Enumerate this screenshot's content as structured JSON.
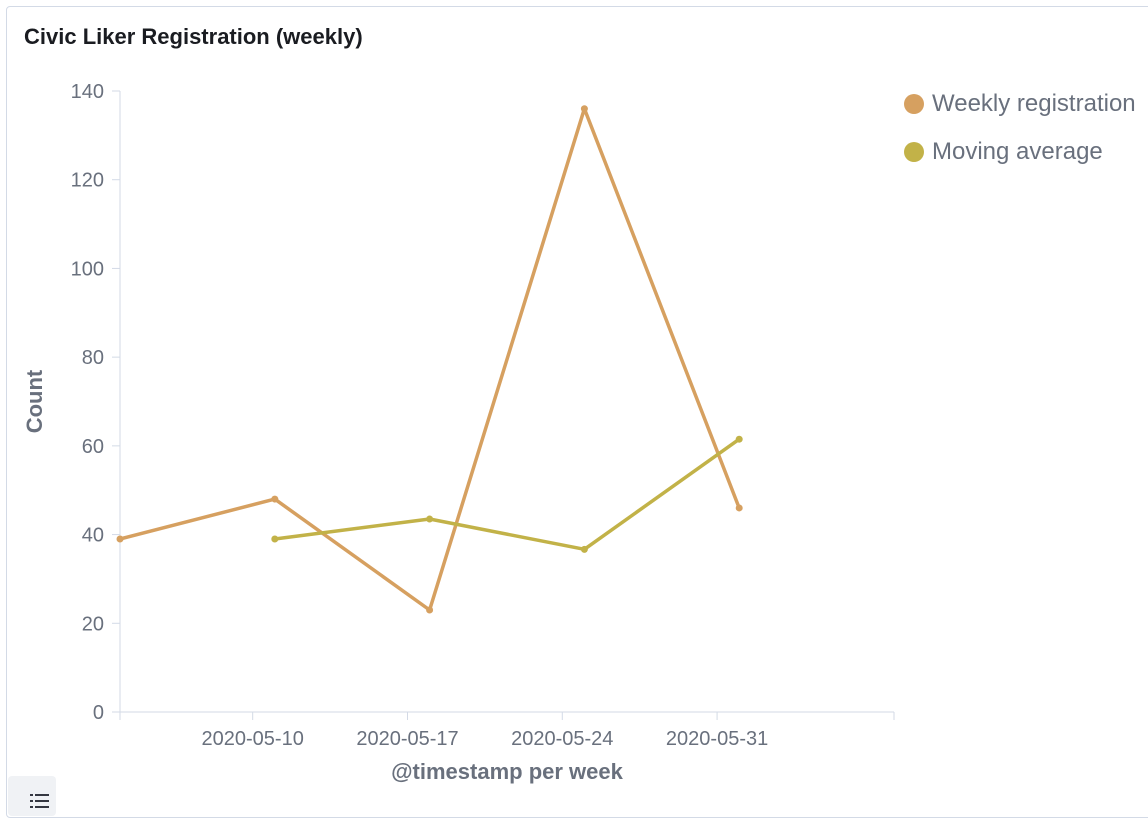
{
  "panel": {
    "title": "Civic Liker Registration (weekly)"
  },
  "colors": {
    "weekly": "#d6a060",
    "moving": "#c2b248",
    "axis": "#d3dae6",
    "text": "#69707d"
  },
  "legend_toggle_icon": "list-icon",
  "chart_data": {
    "type": "line",
    "title": "Civic Liker Registration (weekly)",
    "xlabel": "@timestamp per week",
    "ylabel": "Count",
    "ylim": [
      0,
      140
    ],
    "yticks": [
      0,
      20,
      40,
      60,
      80,
      100,
      120,
      140
    ],
    "xticks": [
      "2020-05-10",
      "2020-05-17",
      "2020-05-24",
      "2020-05-31"
    ],
    "xlim": [
      "2020-05-04",
      "2020-06-08"
    ],
    "grid": false,
    "legend_position": "top-right",
    "series": [
      {
        "name": "Weekly registration",
        "color": "#d6a060",
        "points": [
          {
            "x": "2020-05-04",
            "y": 39
          },
          {
            "x": "2020-05-11",
            "y": 48
          },
          {
            "x": "2020-05-18",
            "y": 23
          },
          {
            "x": "2020-05-25",
            "y": 136
          },
          {
            "x": "2020-06-01",
            "y": 46
          }
        ]
      },
      {
        "name": "Moving average",
        "color": "#c2b248",
        "points": [
          {
            "x": "2020-05-11",
            "y": 39
          },
          {
            "x": "2020-05-18",
            "y": 43.5
          },
          {
            "x": "2020-05-25",
            "y": 36.67
          },
          {
            "x": "2020-06-01",
            "y": 61.5
          }
        ]
      }
    ]
  }
}
